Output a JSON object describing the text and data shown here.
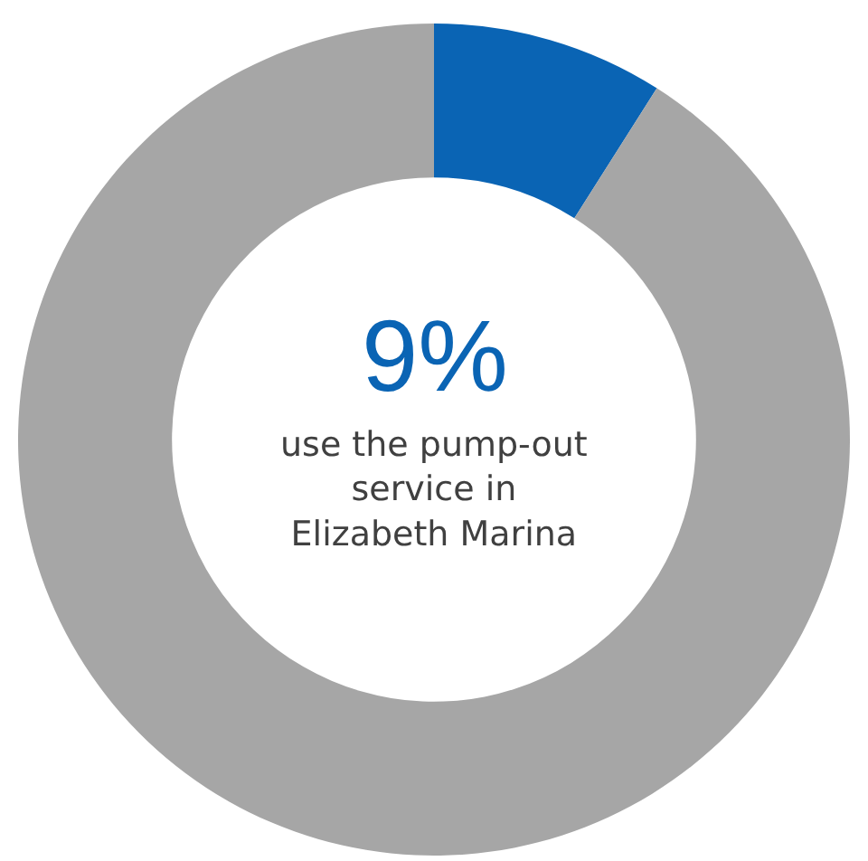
{
  "chart_data": {
    "type": "donut",
    "categories": [
      null,
      null
    ],
    "values": [
      9,
      91
    ],
    "colors": [
      "#0a64b4",
      "#a6a6a6"
    ],
    "annotations": [
      "9%",
      "use the pump-out\nservice in\nElizabeth Marina"
    ],
    "legend": false
  }
}
